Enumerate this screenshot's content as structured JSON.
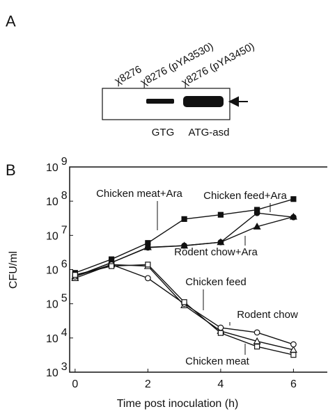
{
  "panel_a": {
    "label": "A",
    "lanes": [
      "χ8276",
      "χ8276 (pYA3530)",
      "χ8276 (pYA3450)"
    ],
    "band_labels": [
      "GTG",
      "ATG-asd"
    ]
  },
  "panel_b": {
    "label": "B"
  },
  "chart_data": {
    "type": "line",
    "xlabel": "Time post inoculation (h)",
    "ylabel": "CFU/ml",
    "x": [
      0,
      1,
      2,
      3,
      4,
      5,
      6
    ],
    "xlim": [
      -0.15,
      6.93
    ],
    "xticks": [
      0,
      2,
      4,
      6
    ],
    "ylim": [
      1000,
      1000000000
    ],
    "log_y": true,
    "yticks": [
      {
        "value": 1000,
        "label": "10",
        "exponent": "3"
      },
      {
        "value": 10000,
        "label": "10",
        "exponent": "4"
      },
      {
        "value": 100000,
        "label": "10",
        "exponent": "5"
      },
      {
        "value": 1000000,
        "label": "10",
        "exponent": "6"
      },
      {
        "value": 10000000,
        "label": "10",
        "exponent": "7"
      },
      {
        "value": 100000000,
        "label": "10",
        "exponent": "8"
      },
      {
        "value": 1000000000,
        "label": "10",
        "exponent": "9"
      }
    ],
    "series": [
      {
        "name": "Chicken meat+Ara",
        "color": "#111111",
        "marker": "square",
        "filled": true,
        "values": [
          800000,
          2000000,
          6000000,
          30000000,
          40000000,
          56000000,
          115000000
        ]
      },
      {
        "name": "Chicken feed+Ara",
        "color": "#111111",
        "marker": "circle",
        "filled": true,
        "values": [
          630000,
          1600000,
          4400000,
          5000000,
          6300000,
          45000000,
          34000000
        ]
      },
      {
        "name": "Rodent chow+Ara",
        "color": "#111111",
        "marker": "triangle",
        "filled": true,
        "values": [
          630000,
          1600000,
          4500000,
          5000000,
          6300000,
          18000000,
          35000000
        ]
      },
      {
        "name": "Chicken feed",
        "color": "#111111",
        "marker": "triangle",
        "filled": false,
        "values": [
          560000,
          1400000,
          1260000,
          90000,
          16000,
          8000,
          4500
        ]
      },
      {
        "name": "Rodent chow",
        "color": "#111111",
        "marker": "circle",
        "filled": false,
        "values": [
          630000,
          1400000,
          560000,
          100000,
          20000,
          14500,
          6500
        ]
      },
      {
        "name": "Chicken meat",
        "color": "#111111",
        "marker": "square",
        "filled": false,
        "values": [
          700000,
          1260000,
          1400000,
          112000,
          14000,
          5600,
          3200
        ]
      }
    ]
  }
}
